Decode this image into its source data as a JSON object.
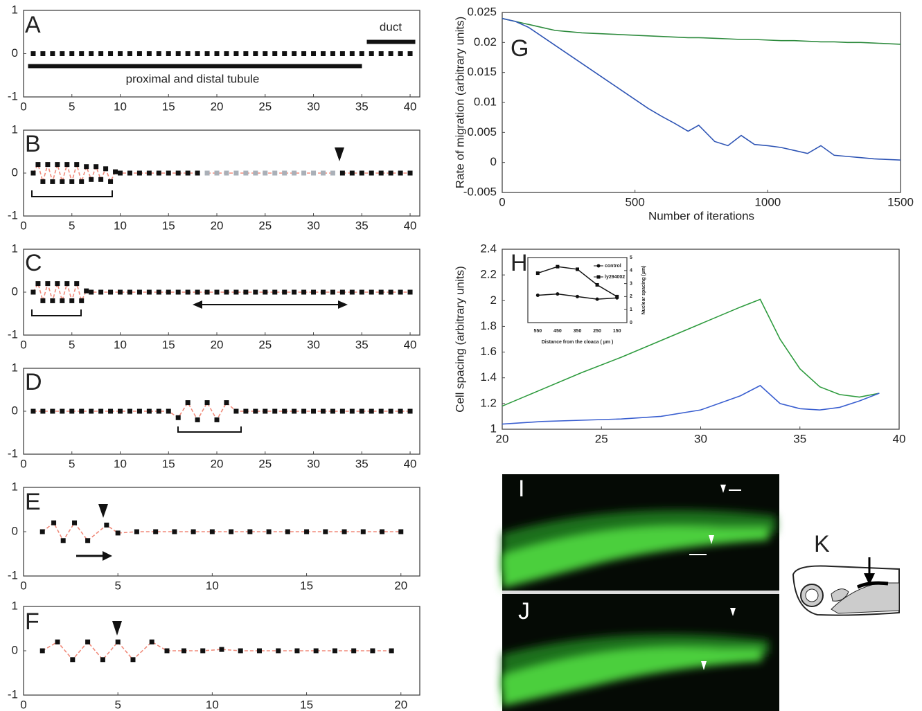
{
  "chart_data": [
    {
      "type": "line",
      "title": "A",
      "annotations": [
        "duct",
        "proximal and distal tubule"
      ],
      "xlim": [
        0,
        41
      ],
      "ylim": [
        -1,
        1
      ],
      "xticks": [
        0,
        5,
        10,
        15,
        20,
        25,
        30,
        35,
        40
      ],
      "yticks": [
        -1,
        0,
        1
      ],
      "series": [
        {
          "color": "#111",
          "marker": "square",
          "x": [
            1,
            2,
            3,
            4,
            5,
            6,
            7,
            8,
            9,
            10,
            11,
            12,
            13,
            14,
            15,
            16,
            17,
            18,
            19,
            20,
            21,
            22,
            23,
            24,
            25,
            26,
            27,
            28,
            29,
            30,
            31,
            32,
            33,
            34,
            35,
            36,
            37,
            38,
            39,
            40
          ],
          "values": [
            0,
            0,
            0,
            0,
            0,
            0,
            0,
            0,
            0,
            0,
            0,
            0,
            0,
            0,
            0,
            0,
            0,
            0,
            0,
            0,
            0,
            0,
            0,
            0,
            0,
            0,
            0,
            0,
            0,
            0,
            0,
            0,
            0,
            0,
            0,
            0,
            0,
            0,
            0,
            0
          ]
        }
      ]
    },
    {
      "type": "line",
      "title": "B",
      "xlim": [
        0,
        41
      ],
      "ylim": [
        -1,
        1
      ],
      "xticks": [
        0,
        5,
        10,
        15,
        20,
        25,
        30,
        35,
        40
      ],
      "yticks": [
        -1,
        0,
        1
      ],
      "series": [
        {
          "color": "#111",
          "line_color": "#f08a7a",
          "marker": "square",
          "x": [
            1,
            1.5,
            2,
            2.5,
            3,
            3.5,
            4,
            4.5,
            5,
            5.5,
            6,
            6.5,
            7,
            7.5,
            8,
            8.5,
            9,
            9.5,
            10,
            11,
            12,
            13,
            14,
            15,
            16,
            17,
            18
          ],
          "values": [
            0,
            0.2,
            -0.2,
            0.2,
            -0.2,
            0.2,
            -0.2,
            0.2,
            -0.2,
            0.2,
            -0.2,
            0.15,
            -0.15,
            0.15,
            -0.15,
            0.1,
            -0.2,
            0.03,
            0,
            0,
            0,
            0,
            0,
            0,
            0,
            0,
            0
          ]
        },
        {
          "color": "#aab0b8",
          "line_color": "#f08a7a",
          "marker": "square",
          "x": [
            19,
            20,
            21,
            22,
            23,
            24,
            25,
            26,
            27,
            28,
            29,
            30,
            31,
            32
          ],
          "values": [
            0,
            0,
            0,
            0,
            0,
            0,
            0,
            0,
            0,
            0,
            0,
            0,
            0,
            0
          ]
        },
        {
          "color": "#111",
          "line_color": "#f08a7a",
          "marker": "square",
          "x": [
            33,
            34,
            35,
            36,
            37,
            38,
            39,
            40
          ],
          "values": [
            0,
            0,
            0,
            0,
            0,
            0,
            0,
            0
          ]
        }
      ]
    },
    {
      "type": "line",
      "title": "C",
      "xlim": [
        0,
        41
      ],
      "ylim": [
        -1,
        1
      ],
      "xticks": [
        0,
        5,
        10,
        15,
        20,
        25,
        30,
        35,
        40
      ],
      "yticks": [
        -1,
        0,
        1
      ],
      "series": [
        {
          "color": "#111",
          "line_color": "#f08a7a",
          "marker": "square",
          "x": [
            1,
            1.5,
            2,
            2.5,
            3,
            3.5,
            4,
            4.5,
            5,
            5.5,
            6,
            6.5,
            7,
            8,
            9,
            10,
            11,
            12,
            13,
            14,
            15,
            16,
            17,
            18,
            19,
            20,
            21,
            22,
            23,
            24,
            25,
            26,
            27,
            28,
            29,
            30,
            31,
            32,
            33,
            34,
            35,
            36,
            37,
            38,
            39,
            40
          ],
          "values": [
            0,
            0.2,
            -0.2,
            0.2,
            -0.2,
            0.2,
            -0.2,
            0.2,
            -0.2,
            0.2,
            -0.2,
            0.03,
            0,
            0,
            0,
            0,
            0,
            0,
            0,
            0,
            0,
            0,
            0,
            0,
            0,
            0,
            0,
            0,
            0,
            0,
            0,
            0,
            0,
            0,
            0,
            0,
            0,
            0,
            0,
            0,
            0,
            0,
            0,
            0,
            0,
            0
          ]
        }
      ]
    },
    {
      "type": "line",
      "title": "D",
      "xlim": [
        0,
        41
      ],
      "ylim": [
        -1,
        1
      ],
      "xticks": [
        0,
        5,
        10,
        15,
        20,
        25,
        30,
        35,
        40
      ],
      "yticks": [
        -1,
        0,
        1
      ],
      "series": [
        {
          "color": "#111",
          "line_color": "#f08a7a",
          "marker": "square",
          "x": [
            1,
            2,
            3,
            4,
            5,
            6,
            7,
            8,
            9,
            10,
            11,
            12,
            13,
            14,
            15,
            16,
            17,
            18,
            19,
            20,
            21,
            22,
            23,
            24,
            25,
            26,
            27,
            28,
            29,
            30,
            31,
            32,
            33,
            34,
            35,
            36,
            37,
            38,
            39,
            40
          ],
          "values": [
            0,
            0,
            0,
            0,
            0,
            0,
            0,
            0,
            0,
            0,
            0,
            0,
            0,
            0,
            0,
            -0.15,
            0.2,
            -0.2,
            0.2,
            -0.2,
            0.2,
            0,
            0,
            0,
            0,
            0,
            0,
            0,
            0,
            0,
            0,
            0,
            0,
            0,
            0,
            0,
            0,
            0,
            0,
            0
          ]
        }
      ]
    },
    {
      "type": "line",
      "title": "E",
      "xlim": [
        0,
        21
      ],
      "ylim": [
        -1,
        1
      ],
      "xticks": [
        0,
        5,
        10,
        15,
        20
      ],
      "yticks": [
        -1,
        0,
        1
      ],
      "series": [
        {
          "color": "#111",
          "line_color": "#f08a7a",
          "marker": "square",
          "x": [
            1,
            1.6,
            2.1,
            2.7,
            3.4,
            4.4,
            5,
            6,
            7,
            8,
            9,
            10,
            11,
            12,
            13,
            14,
            15,
            16,
            17,
            18,
            19,
            20
          ],
          "values": [
            0,
            0.2,
            -0.2,
            0.2,
            -0.2,
            0.15,
            -0.03,
            0,
            0,
            0,
            0,
            0,
            0,
            0,
            0,
            0,
            0,
            0,
            0,
            0,
            0,
            0
          ]
        }
      ]
    },
    {
      "type": "line",
      "title": "F",
      "xlim": [
        0,
        21
      ],
      "ylim": [
        -1,
        1
      ],
      "xticks": [
        0,
        5,
        10,
        15,
        20
      ],
      "yticks": [
        -1,
        0,
        1
      ],
      "series": [
        {
          "color": "#111",
          "line_color": "#f08a7a",
          "marker": "square",
          "x": [
            1,
            1.8,
            2.6,
            3.4,
            4.2,
            5,
            5.8,
            6.8,
            7.6,
            8.5,
            9.5,
            10.5,
            11.5,
            12.5,
            13.5,
            14.5,
            15.5,
            16.5,
            17.5,
            18.5,
            19.5
          ],
          "values": [
            0,
            0.2,
            -0.2,
            0.2,
            -0.2,
            0.2,
            -0.2,
            0.2,
            0,
            0,
            0,
            0.03,
            0,
            0,
            0,
            0,
            0,
            0,
            0,
            0,
            0
          ]
        }
      ]
    },
    {
      "type": "line",
      "title": "G",
      "xlabel": "Number of iterations",
      "ylabel": "Rate of migration (arbitrary units)",
      "xlim": [
        0,
        1500
      ],
      "ylim": [
        -0.005,
        0.025
      ],
      "xticks": [
        0,
        500,
        1000,
        1500
      ],
      "yticks": [
        -0.005,
        0,
        0.005,
        0.01,
        0.015,
        0.02,
        0.025
      ],
      "x": [
        0,
        50,
        100,
        150,
        200,
        250,
        300,
        350,
        400,
        450,
        500,
        550,
        600,
        650,
        700,
        740,
        800,
        850,
        900,
        950,
        1000,
        1050,
        1100,
        1150,
        1200,
        1250,
        1300,
        1350,
        1400,
        1450,
        1500
      ],
      "series": [
        {
          "line_color": "#2e8b3e",
          "values": [
            0.024,
            0.0235,
            0.023,
            0.0225,
            0.022,
            0.0218,
            0.0216,
            0.0215,
            0.0214,
            0.0213,
            0.0212,
            0.0211,
            0.021,
            0.0209,
            0.0208,
            0.0208,
            0.0207,
            0.0206,
            0.0205,
            0.0205,
            0.0204,
            0.0203,
            0.0203,
            0.0202,
            0.0201,
            0.0201,
            0.02,
            0.02,
            0.0199,
            0.0198,
            0.0197
          ]
        },
        {
          "line_color": "#2f55b5",
          "values": [
            0.024,
            0.0235,
            0.0225,
            0.021,
            0.0195,
            0.018,
            0.0165,
            0.015,
            0.0135,
            0.012,
            0.0105,
            0.009,
            0.0077,
            0.0065,
            0.0052,
            0.0062,
            0.0035,
            0.0028,
            0.0045,
            0.003,
            0.0028,
            0.0025,
            0.002,
            0.0015,
            0.0028,
            0.0012,
            0.001,
            0.0008,
            0.0006,
            0.0005,
            0.0004
          ]
        }
      ]
    },
    {
      "type": "line",
      "title": "H",
      "ylabel": "Cell spacing (arbitrary units)",
      "xlim": [
        20,
        40
      ],
      "ylim": [
        1,
        2.4
      ],
      "xticks": [
        20,
        25,
        30,
        35,
        40
      ],
      "yticks": [
        1,
        1.2,
        1.4,
        1.6,
        1.8,
        2,
        2.2,
        2.4
      ],
      "x": [
        20,
        22,
        24,
        26,
        28,
        30,
        32,
        33,
        34,
        35,
        36,
        37,
        38,
        39
      ],
      "series": [
        {
          "line_color": "#2e9b3e",
          "values": [
            1.18,
            1.31,
            1.44,
            1.56,
            1.69,
            1.82,
            1.95,
            2.01,
            1.7,
            1.47,
            1.33,
            1.27,
            1.25,
            1.28
          ]
        },
        {
          "line_color": "#3a5fd0",
          "values": [
            1.04,
            1.06,
            1.07,
            1.08,
            1.1,
            1.15,
            1.26,
            1.34,
            1.2,
            1.16,
            1.15,
            1.17,
            1.22,
            1.28
          ]
        }
      ]
    },
    {
      "type": "line",
      "xlabel": "Distance from the cloaca ( µm )",
      "ylabel": "Nuclear spacing (µm)",
      "categories": [
        "550",
        "450",
        "350",
        "250",
        "150"
      ],
      "ylim": [
        0,
        5
      ],
      "yticks": [
        0,
        1,
        2,
        3,
        4,
        5
      ],
      "series": [
        {
          "name": "control",
          "color": "#111",
          "line_color": "#111",
          "marker": "circle",
          "values": [
            2.1,
            2.2,
            2,
            1.8,
            1.9
          ]
        },
        {
          "name": "ly294002",
          "color": "#111",
          "line_color": "#111",
          "marker": "square",
          "values": [
            3.8,
            4.3,
            4.1,
            2.9,
            2
          ]
        }
      ]
    }
  ],
  "images": [
    {
      "label": "I"
    },
    {
      "label": "J"
    },
    {
      "label": "K"
    }
  ]
}
